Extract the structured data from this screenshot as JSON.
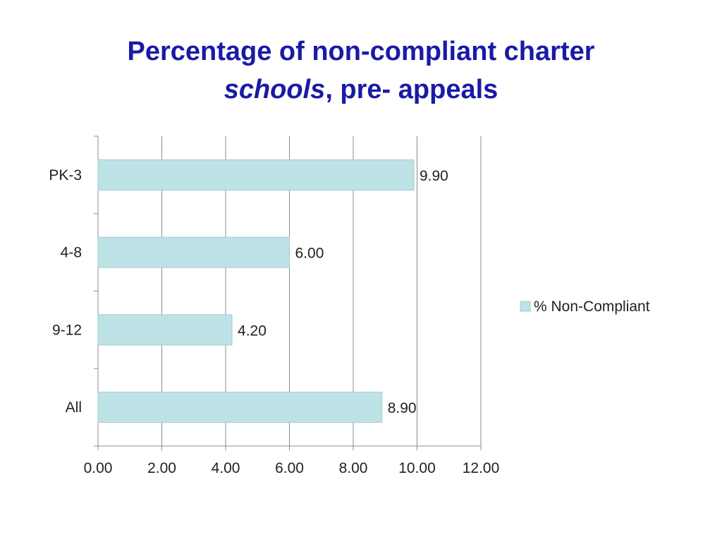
{
  "title": {
    "line1": "Percentage of non-compliant charter",
    "line2_em": "schools",
    "line2_rest": ", pre- appeals"
  },
  "chart_data": {
    "type": "bar",
    "orientation": "horizontal",
    "categories": [
      "PK-3",
      "4-8",
      "9-12",
      "All"
    ],
    "series": [
      {
        "name": "% Non-Compliant",
        "values": [
          9.9,
          6.0,
          4.2,
          8.9
        ],
        "color": "#bde3e6"
      }
    ],
    "data_labels": [
      "9.90",
      "6.00",
      "4.20",
      "8.90"
    ],
    "x_ticks": [
      "0.00",
      "2.00",
      "4.00",
      "6.00",
      "8.00",
      "10.00",
      "12.00"
    ],
    "xlim": [
      0,
      12
    ],
    "grid": true,
    "legend": "right"
  }
}
